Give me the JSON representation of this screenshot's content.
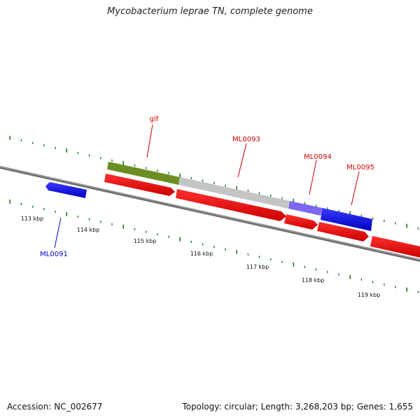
{
  "title": "Mycobacterium leprae TN, complete genome",
  "footer": {
    "accession": "Accession: NC_002677",
    "summary": "Topology: circular; Length: 3,268,203 bp; Genes: 1,655"
  },
  "colors": {
    "backbone": "#777777",
    "ticks": "#1e7a1e",
    "forward_gene": "#ee0000",
    "reverse_gene": "#1010e0",
    "label_red": "#cc0000",
    "label_blue": "#0000cc",
    "feature_olive": "#6b8e23",
    "feature_gray": "#c8c8c8",
    "feature_lavender": "#7b68ee"
  },
  "kbp_labels": [
    "113 kbp",
    "114 kbp",
    "115 kbp",
    "116 kbp",
    "117 kbp",
    "118 kbp",
    "119 kbp"
  ],
  "gene_labels": [
    {
      "text": "glf",
      "color": "#cc0000"
    },
    {
      "text": "ML0093",
      "color": "#cc0000"
    },
    {
      "text": "ML0094",
      "color": "#cc0000"
    },
    {
      "text": "ML0095",
      "color": "#cc0000"
    },
    {
      "text": "ML0091",
      "color": "#0000cc"
    }
  ]
}
